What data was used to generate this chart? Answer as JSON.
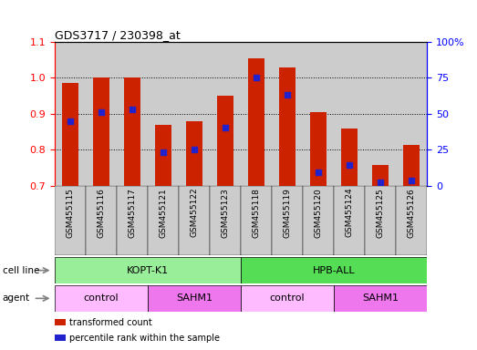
{
  "title": "GDS3717 / 230398_at",
  "samples": [
    "GSM455115",
    "GSM455116",
    "GSM455117",
    "GSM455121",
    "GSM455122",
    "GSM455123",
    "GSM455118",
    "GSM455119",
    "GSM455120",
    "GSM455124",
    "GSM455125",
    "GSM455126"
  ],
  "bar_values": [
    0.985,
    1.0,
    1.002,
    0.868,
    0.88,
    0.95,
    1.055,
    1.03,
    0.905,
    0.858,
    0.756,
    0.812
  ],
  "blue_dot_values": [
    0.878,
    0.905,
    0.912,
    0.792,
    0.8,
    0.862,
    1.0,
    0.952,
    0.737,
    0.758,
    0.71,
    0.713
  ],
  "ylim": [
    0.7,
    1.1
  ],
  "y2lim": [
    0,
    100
  ],
  "yticks": [
    0.7,
    0.8,
    0.9,
    1.0,
    1.1
  ],
  "y2ticks": [
    0,
    25,
    50,
    75,
    100
  ],
  "y2ticklabels": [
    "0",
    "25",
    "50",
    "75",
    "100%"
  ],
  "bar_color": "#cc2200",
  "dot_color": "#2222cc",
  "bar_width": 0.55,
  "cell_line_groups": [
    {
      "label": "KOPT-K1",
      "start": 0,
      "end": 6,
      "color": "#99ee99"
    },
    {
      "label": "HPB-ALL",
      "start": 6,
      "end": 12,
      "color": "#55dd55"
    }
  ],
  "agent_groups": [
    {
      "label": "control",
      "start": 0,
      "end": 3,
      "color": "#ffbbff"
    },
    {
      "label": "SAHM1",
      "start": 3,
      "end": 6,
      "color": "#ee77ee"
    },
    {
      "label": "control",
      "start": 6,
      "end": 9,
      "color": "#ffbbff"
    },
    {
      "label": "SAHM1",
      "start": 9,
      "end": 12,
      "color": "#ee77ee"
    }
  ],
  "legend_items": [
    {
      "label": "transformed count",
      "color": "#cc2200"
    },
    {
      "label": "percentile rank within the sample",
      "color": "#2222cc"
    }
  ],
  "tick_bg": "#cccccc",
  "cell_line_label": "cell line",
  "agent_label": "agent"
}
